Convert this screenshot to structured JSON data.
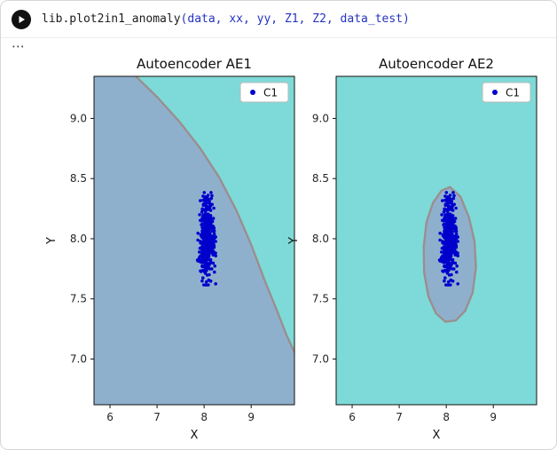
{
  "cell": {
    "run_button_label": "run cell",
    "code_function": "lib.plot2in1_anomaly",
    "code_args": "(data, xx, yy, Z1, Z2, data_test)",
    "options_label": "⋯"
  },
  "colors": {
    "region_cyan": "#7edad8",
    "region_steelblue": "#8fb0cd",
    "boundary": "#9a8f8f",
    "scatter": "#0000cd",
    "code_args": "#2433c0",
    "tick_text": "#262626",
    "spine": "#111111"
  },
  "chart_data": [
    {
      "type": "scatter",
      "title": "Autoencoder AE1",
      "xlabel": "X",
      "ylabel": "Y",
      "xlim": [
        5.66,
        9.92
      ],
      "ylim": [
        6.62,
        9.35
      ],
      "xticks": [
        "6",
        "7",
        "8",
        "9"
      ],
      "yticks": [
        "7.0",
        "7.5",
        "8.0",
        "8.5",
        "9.0"
      ],
      "legend": [
        "C1"
      ],
      "bg": "region_steelblue",
      "region": {
        "fill": "region_cyan",
        "closed": false,
        "points": [
          [
            6.55,
            9.35
          ],
          [
            7.02,
            9.17
          ],
          [
            7.48,
            8.97
          ],
          [
            7.92,
            8.75
          ],
          [
            8.32,
            8.51
          ],
          [
            8.68,
            8.24
          ],
          [
            9.0,
            7.95
          ],
          [
            9.29,
            7.65
          ],
          [
            9.55,
            7.4
          ],
          [
            9.75,
            7.2
          ],
          [
            9.95,
            7.03
          ]
        ],
        "close_corners": [
          [
            9.95,
            9.35
          ]
        ]
      },
      "cluster": {
        "label": "C1",
        "center": [
          8.05,
          8.0
        ],
        "std": [
          0.085,
          0.16
        ],
        "n": 420
      }
    },
    {
      "type": "scatter",
      "title": "Autoencoder AE2",
      "xlabel": "X",
      "ylabel": "Y",
      "xlim": [
        5.66,
        9.92
      ],
      "ylim": [
        6.62,
        9.35
      ],
      "xticks": [
        "6",
        "7",
        "8",
        "9"
      ],
      "yticks": [
        "7.0",
        "7.5",
        "8.0",
        "8.5",
        "9.0"
      ],
      "legend": [
        "C1"
      ],
      "bg": "region_cyan",
      "region": {
        "fill": "region_steelblue",
        "closed": true,
        "points": [
          [
            8.08,
            8.43
          ],
          [
            8.3,
            8.35
          ],
          [
            8.48,
            8.18
          ],
          [
            8.6,
            7.98
          ],
          [
            8.63,
            7.76
          ],
          [
            8.56,
            7.55
          ],
          [
            8.4,
            7.4
          ],
          [
            8.2,
            7.32
          ],
          [
            7.98,
            7.31
          ],
          [
            7.78,
            7.38
          ],
          [
            7.62,
            7.52
          ],
          [
            7.53,
            7.72
          ],
          [
            7.52,
            7.93
          ],
          [
            7.58,
            8.14
          ],
          [
            7.72,
            8.3
          ],
          [
            7.9,
            8.4
          ]
        ],
        "close_corners": []
      },
      "cluster": {
        "label": "C1",
        "center": [
          8.05,
          8.0
        ],
        "std": [
          0.085,
          0.16
        ],
        "n": 420
      }
    }
  ]
}
